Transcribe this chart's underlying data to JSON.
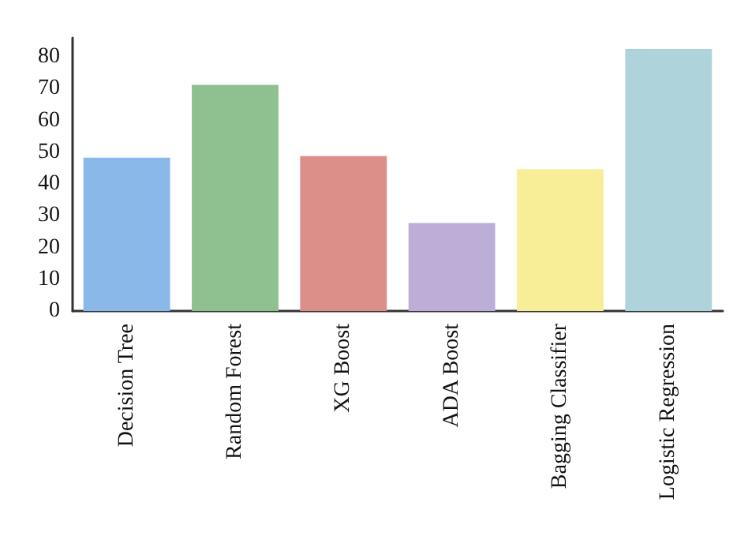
{
  "chart_data": {
    "type": "bar",
    "categories": [
      "Decision Tree",
      "Random Forest",
      "XG Boost",
      "ADA Boost",
      "Bagging Classifier",
      "Logistic Regression"
    ],
    "values": [
      48.3,
      71.2,
      48.8,
      27.7,
      44.7,
      82.5
    ],
    "colors": [
      "#8ab8e8",
      "#8fc08f",
      "#dc8f88",
      "#bcaed6",
      "#f8ee98",
      "#afd3da"
    ],
    "ylim": [
      0,
      86
    ],
    "yticks": [
      0,
      10,
      20,
      30,
      40,
      50,
      60,
      70,
      80
    ],
    "grid": false
  }
}
